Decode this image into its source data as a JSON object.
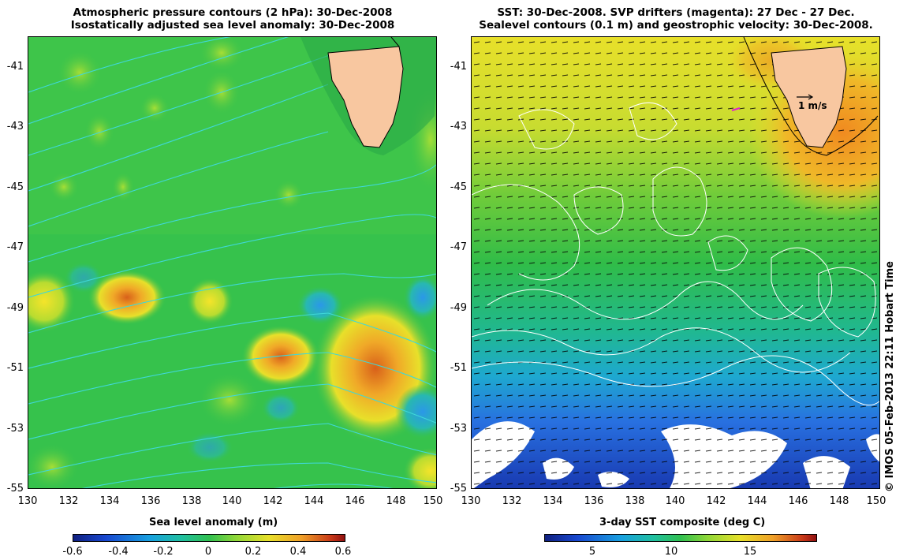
{
  "left_panel": {
    "title_line1": "Atmospheric pressure contours (2 hPa): 30-Dec-2008",
    "title_line2": "Isostatically adjusted sea level anomaly: 30-Dec-2008",
    "colorbar_label": "Sea level anomaly (m)",
    "colorbar_ticks": [
      "-0.6",
      "-0.4",
      "-0.2",
      "0",
      "0.2",
      "0.4",
      "0.6"
    ]
  },
  "right_panel": {
    "title_line1": "SST: 30-Dec-2008. SVP drifters (magenta): 27 Dec - 27 Dec.",
    "title_line2": "Sealevel contours (0.1 m) and geostrophic velocity: 30-Dec-2008.",
    "colorbar_label": "3-day SST composite (deg C)",
    "colorbar_ticks": [
      "5",
      "10",
      "15"
    ],
    "velocity_scale_label": "1 m/s"
  },
  "y_axis_labels": [
    "-41",
    "-43",
    "-45",
    "-47",
    "-49",
    "-51",
    "-53",
    "-55"
  ],
  "x_axis_labels": [
    "130",
    "132",
    "134",
    "136",
    "138",
    "140",
    "142",
    "144",
    "146",
    "148",
    "150"
  ],
  "credit": "© IMOS 05-Feb-2013 22:11 Hobart Time",
  "map_extent": {
    "lon_min": 130,
    "lon_max": 150,
    "lat_min": -55,
    "lat_max": -40
  },
  "colors": {
    "land": "#f8c7a0",
    "sla_background": "#35c24a",
    "sst_warm": "#e6e62a",
    "sst_cold": "#1848d6",
    "contour_left": "#3fd8d8",
    "contour_right": "#ffffff"
  }
}
